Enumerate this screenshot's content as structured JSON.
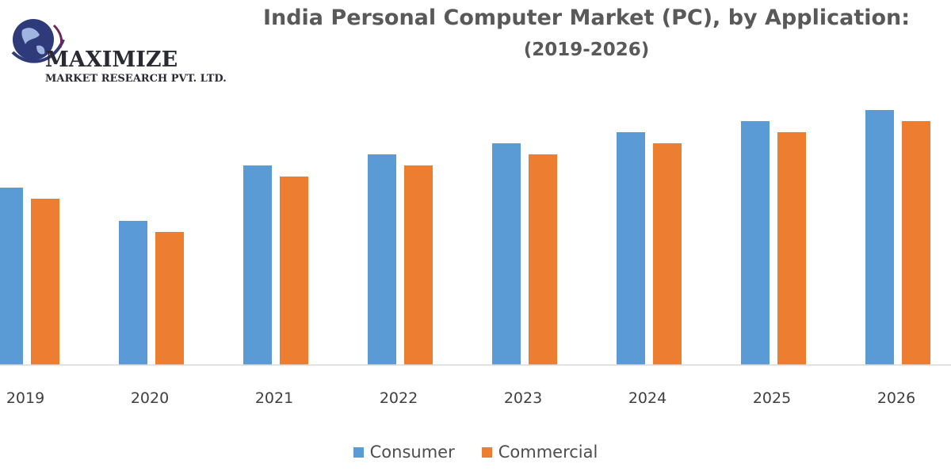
{
  "logo": {
    "name": "MAXIMIZE",
    "tagline": "MARKET RESEARCH PVT. LTD."
  },
  "colors": {
    "consumer": "#5b9bd5",
    "commercial": "#ed7d31",
    "axis": "#d9d9d9",
    "logo_globe": "#2f3a7a"
  },
  "chart_data": {
    "type": "bar",
    "title": "India Personal Computer Market (PC), by Application:",
    "subtitle": "(2019-2026)",
    "xlabel": "",
    "ylabel": "",
    "categories": [
      "2019",
      "2020",
      "2021",
      "2022",
      "2023",
      "2024",
      "2025",
      "2026"
    ],
    "series": [
      {
        "name": "Consumer",
        "values": [
          224,
          182,
          252,
          266,
          280,
          294,
          308,
          322
        ]
      },
      {
        "name": "Commercial",
        "values": [
          210,
          168,
          238,
          252,
          266,
          280,
          294,
          308
        ]
      }
    ],
    "ylim": [
      0,
      330
    ],
    "y_axis_labels_shown": false,
    "grid": false,
    "legend_position": "bottom"
  }
}
